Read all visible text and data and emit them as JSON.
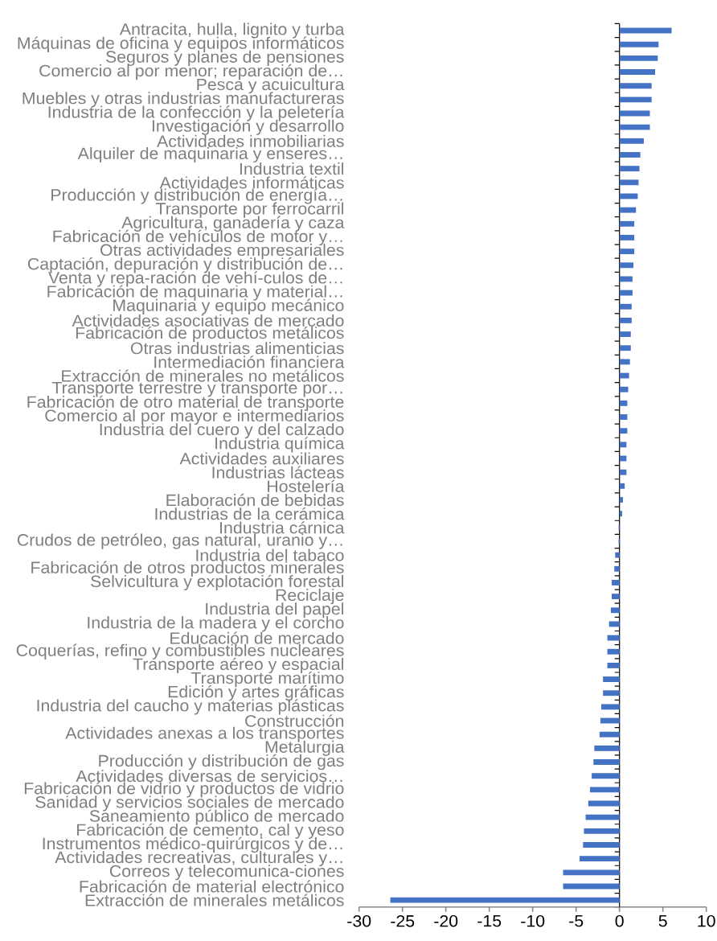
{
  "chart_data": {
    "type": "bar",
    "orientation": "horizontal",
    "categories": [
      "Antracita, hulla, lignito y turba",
      "Máquinas de oficina y equipos informáticos",
      "Seguros y planes de pensiones",
      "Comercio al por menor; reparación de…",
      "Pesca y acuicultura",
      "Muebles y otras industrias manufactureras",
      "Industria de la confección y la peletería",
      "Investigación y desarrollo",
      "Actividades inmobiliarias",
      "Alquiler de maquinaria y enseres…",
      "Industria textil",
      "Actividades informáticas",
      "Producción y distribución de energía…",
      "Transporte por ferrocarril",
      "Agricultura, ganadería y caza",
      "Fabricación de vehículos de motor y…",
      "Otras actividades empresariales",
      "Captación, depuración y distribución de…",
      "Venta y repa-ración de vehí-culos de…",
      "Fabricación de maquinaria y material…",
      "Maquinaria y equipo mecánico",
      "Actividades asociativas de mercado",
      "Fabricación de productos metálicos",
      "Otras industrias alimenticias",
      "Intermediación financiera",
      "Extracción de minerales no metálicos",
      "Transporte terrestre y transporte por…",
      "Fabricación de otro material de transporte",
      "Comercio al por mayor e intermediarios",
      "Industria del cuero y del calzado",
      "Industria química",
      "Actividades auxiliares",
      "Industrias lácteas",
      "Hostelería",
      "Elaboración de bebidas",
      "Industrias de la cerámica",
      "Industria cárnica",
      "Crudos de petróleo, gas natural, uranio y…",
      "Industria del tabaco",
      "Fabricación de otros productos minerales",
      "Selvicultura y explotación forestal",
      "Reciclaje",
      "Industria del papel",
      "Industria de la madera y el corcho",
      "Educación de mercado",
      "Coquerías, refino y combustibles nucleares",
      "Transporte aéreo y espacial",
      "Transporte marítimo",
      "Edición y artes gráficas",
      "Industria del caucho y materias plásticas",
      "Construcción",
      "Actividades anexas a los transportes",
      "Metalurgia",
      "Producción y distribución de gas",
      "Actividades diversas de servicios…",
      "Fabricación de vidrio y productos de vidrio",
      "Sanidad y servicios sociales de mercado",
      "Saneamiento público de mercado",
      "Fabricación de cemento, cal y yeso",
      "Instrumentos médico-quirúrgicos y de…",
      "Actividades recreativas, culturales y…",
      "Correos y telecomunica-ciones",
      "Fabricación de material electrónico",
      "Extracción de minerales metálicos"
    ],
    "values": [
      6.0,
      4.5,
      4.4,
      4.1,
      3.7,
      3.7,
      3.5,
      3.5,
      2.8,
      2.4,
      2.3,
      2.2,
      2.1,
      1.9,
      1.7,
      1.7,
      1.7,
      1.6,
      1.5,
      1.5,
      1.4,
      1.4,
      1.3,
      1.3,
      1.2,
      1.1,
      1.0,
      0.9,
      0.9,
      0.9,
      0.8,
      0.8,
      0.8,
      0.6,
      0.4,
      0.3,
      -0.1,
      -0.1,
      -0.5,
      -0.6,
      -0.9,
      -0.9,
      -1.0,
      -1.2,
      -1.4,
      -1.4,
      -1.4,
      -1.9,
      -1.9,
      -2.1,
      -2.2,
      -2.3,
      -2.9,
      -3.0,
      -3.2,
      -3.4,
      -3.6,
      -3.9,
      -4.1,
      -4.2,
      -4.6,
      -6.5,
      -6.5,
      -26.4
    ],
    "color": "#4472c4",
    "xlim": [
      -30,
      10
    ],
    "xticks": [
      -30,
      -25,
      -20,
      -15,
      -10,
      -5,
      0,
      5,
      10
    ]
  }
}
